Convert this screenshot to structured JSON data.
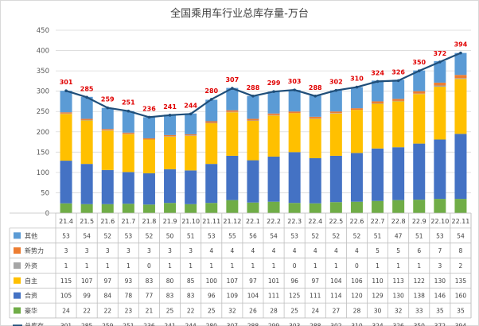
{
  "chart_data": {
    "type": "bar",
    "stacked": true,
    "title": "全国乘用车行业总库存量-万台",
    "categories": [
      "21.4",
      "21.5",
      "21.6",
      "21.7",
      "21.8",
      "21.9",
      "21.10",
      "21.11",
      "21.12",
      "22.1",
      "22.2",
      "22.3",
      "22.4",
      "22.5",
      "22.6",
      "22.7",
      "22.8",
      "22.9",
      "22.10",
      "22.11"
    ],
    "ylim": [
      0,
      450
    ],
    "yticks": [
      0,
      50,
      100,
      150,
      200,
      250,
      300,
      350,
      400,
      450
    ],
    "series": [
      {
        "name": "豪华",
        "color": "#70ad47",
        "values": [
          24,
          22,
          22,
          23,
          21,
          25,
          22,
          25,
          32,
          26,
          28,
          25,
          24,
          27,
          28,
          30,
          32,
          33,
          35,
          35
        ]
      },
      {
        "name": "合资",
        "color": "#4472c4",
        "values": [
          105,
          99,
          84,
          78,
          77,
          83,
          83,
          96,
          109,
          104,
          111,
          125,
          111,
          114,
          120,
          129,
          130,
          138,
          146,
          160
        ]
      },
      {
        "name": "自主",
        "color": "#ffc000",
        "values": [
          115,
          107,
          97,
          93,
          83,
          80,
          85,
          100,
          107,
          97,
          101,
          96,
          97,
          104,
          106,
          110,
          113,
          122,
          130,
          135
        ]
      },
      {
        "name": "外资",
        "color": "#a5a5a5",
        "values": [
          1,
          1,
          1,
          1,
          0,
          1,
          1,
          1,
          1,
          1,
          1,
          0,
          1,
          1,
          0,
          1,
          1,
          1,
          3,
          2
        ]
      },
      {
        "name": "新势力",
        "color": "#ed7d31",
        "values": [
          3,
          3,
          3,
          3,
          3,
          3,
          3,
          4,
          4,
          4,
          4,
          4,
          4,
          4,
          4,
          5,
          5,
          6,
          7,
          8
        ]
      },
      {
        "name": "其他",
        "color": "#5b9bd5",
        "values": [
          53,
          54,
          52,
          53,
          52,
          50,
          51,
          53,
          55,
          56,
          54,
          53,
          52,
          52,
          52,
          51,
          47,
          51,
          53,
          54
        ]
      }
    ],
    "line": {
      "name": "总库存",
      "color": "#1f4e79",
      "values": [
        301,
        285,
        259,
        251,
        236,
        241,
        244,
        280,
        307,
        288,
        299,
        303,
        288,
        302,
        310,
        324,
        326,
        350,
        372,
        394
      ],
      "label_color": "#e00000"
    },
    "table_row_order": [
      "其他",
      "新势力",
      "外资",
      "自主",
      "合资",
      "豪华",
      "总库存"
    ],
    "grid": true
  }
}
